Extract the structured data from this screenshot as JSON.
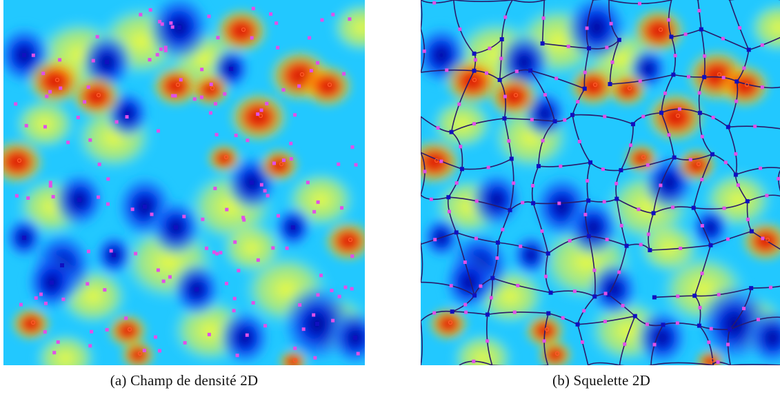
{
  "figure": {
    "panel_a": {
      "caption": "(a) Champ de densité 2D"
    },
    "panel_b": {
      "caption": "(b) Squelette 2D"
    }
  },
  "colors": {
    "colormap": [
      "#00008b",
      "#0022dd",
      "#1a6fff",
      "#22c8ff",
      "#7ef0ff",
      "#ffff30",
      "#ffaa00",
      "#ff3300",
      "#c41000"
    ],
    "minima_marker": "#1010c0",
    "saddle_marker": "#e050e8",
    "maxima_marker": "#ff5a2a",
    "skeleton_line": "#2a1a6a"
  }
}
